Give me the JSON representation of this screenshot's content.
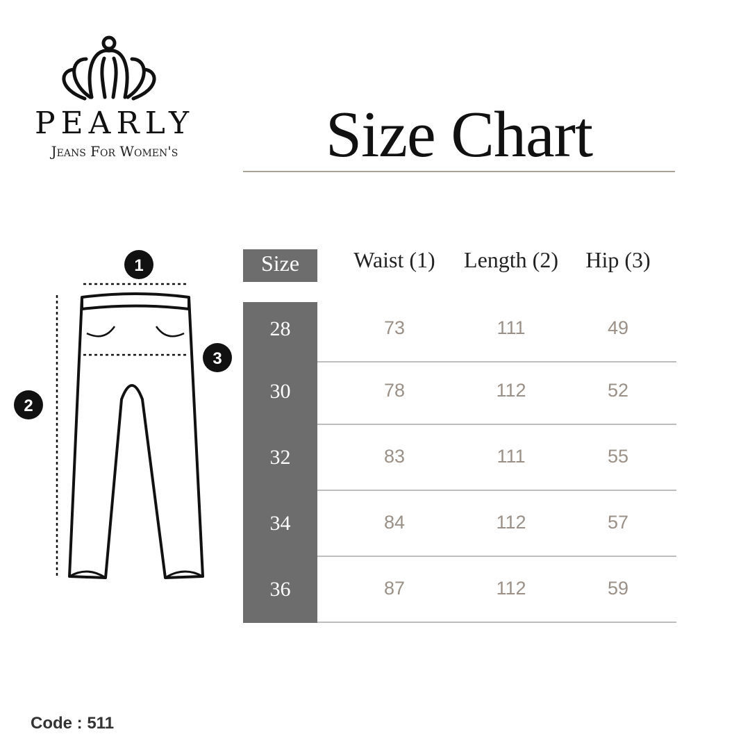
{
  "brand": {
    "name": "PEARLY",
    "tagline": "Jeans For Women's",
    "logo_icon": "crown-icon"
  },
  "title": "Size Chart",
  "diagram": {
    "markers": [
      "1",
      "2",
      "3"
    ]
  },
  "table": {
    "headers": [
      "Size",
      "Waist (1)",
      "Length (2)",
      "Hip (3)"
    ],
    "rows": [
      {
        "size": "28",
        "waist": "73",
        "length": "111",
        "hip": "49"
      },
      {
        "size": "30",
        "waist": "78",
        "length": "112",
        "hip": "52"
      },
      {
        "size": "32",
        "waist": "83",
        "length": "111",
        "hip": "55"
      },
      {
        "size": "34",
        "waist": "84",
        "length": "112",
        "hip": "57"
      },
      {
        "size": "36",
        "waist": "87",
        "length": "112",
        "hip": "59"
      }
    ]
  },
  "code": "Code : 511",
  "colors": {
    "size_column": "#6d6d6d",
    "values": "#9a9087",
    "rule": "#a8a198"
  }
}
